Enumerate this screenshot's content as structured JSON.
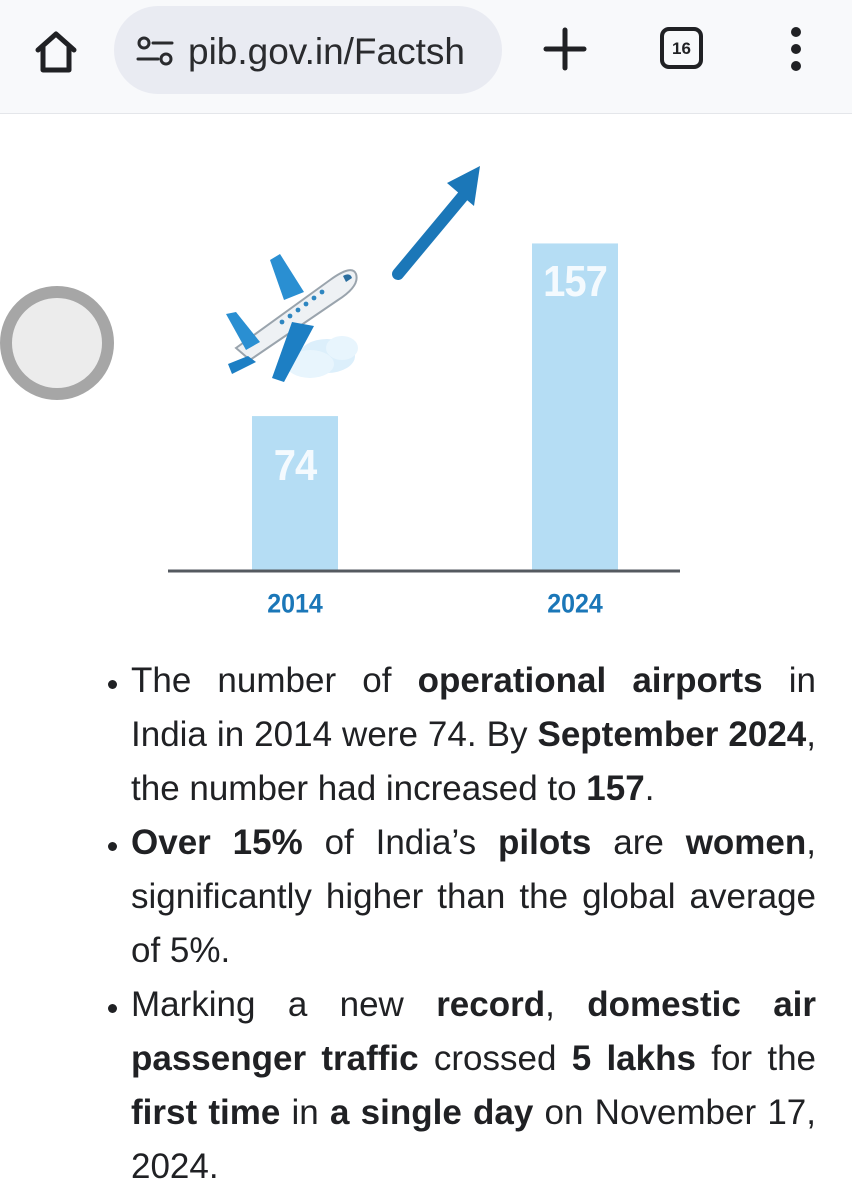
{
  "browser": {
    "url": "pib.gov.in/Factsh",
    "tab_count": "16",
    "icons": {
      "home": "home-icon",
      "site_info": "tune-icon",
      "new_tab": "plus-icon",
      "tabs": "tab-switcher-icon",
      "menu": "overflow-menu-icon"
    }
  },
  "chart_data": {
    "type": "bar",
    "categories": [
      "2014",
      "2024"
    ],
    "values": [
      74,
      157
    ],
    "value_labels": [
      "74",
      "157"
    ],
    "decorations": [
      "airplane-icon",
      "trend-arrow-icon"
    ],
    "bar_color": "#b5ddf4",
    "arrow_color": "#1b77b8"
  },
  "bullets": [
    [
      {
        "t": "The number of ",
        "b": false
      },
      {
        "t": "operational airports",
        "b": true
      },
      {
        "t": " in India in 2014 were 74. By ",
        "b": false
      },
      {
        "t": "September 2024",
        "b": true
      },
      {
        "t": ", the number had increased to ",
        "b": false
      },
      {
        "t": "157",
        "b": true
      },
      {
        "t": ".",
        "b": false
      }
    ],
    [
      {
        "t": "Over 15%",
        "b": true
      },
      {
        "t": " of India’s ",
        "b": false
      },
      {
        "t": "pilots",
        "b": true
      },
      {
        "t": " are ",
        "b": false
      },
      {
        "t": "women",
        "b": true
      },
      {
        "t": ", significantly higher than the global average of 5%.",
        "b": false
      }
    ],
    [
      {
        "t": "Marking a new ",
        "b": false
      },
      {
        "t": "record",
        "b": true
      },
      {
        "t": ", ",
        "b": false
      },
      {
        "t": "domestic air passenger traffic",
        "b": true
      },
      {
        "t": " crossed ",
        "b": false
      },
      {
        "t": "5 lakhs",
        "b": true
      },
      {
        "t": " for the ",
        "b": false
      },
      {
        "t": "first time",
        "b": true
      },
      {
        "t": " in ",
        "b": false
      },
      {
        "t": "a single day",
        "b": true
      },
      {
        "t": " on November 17, 2024.",
        "b": false
      }
    ]
  ]
}
